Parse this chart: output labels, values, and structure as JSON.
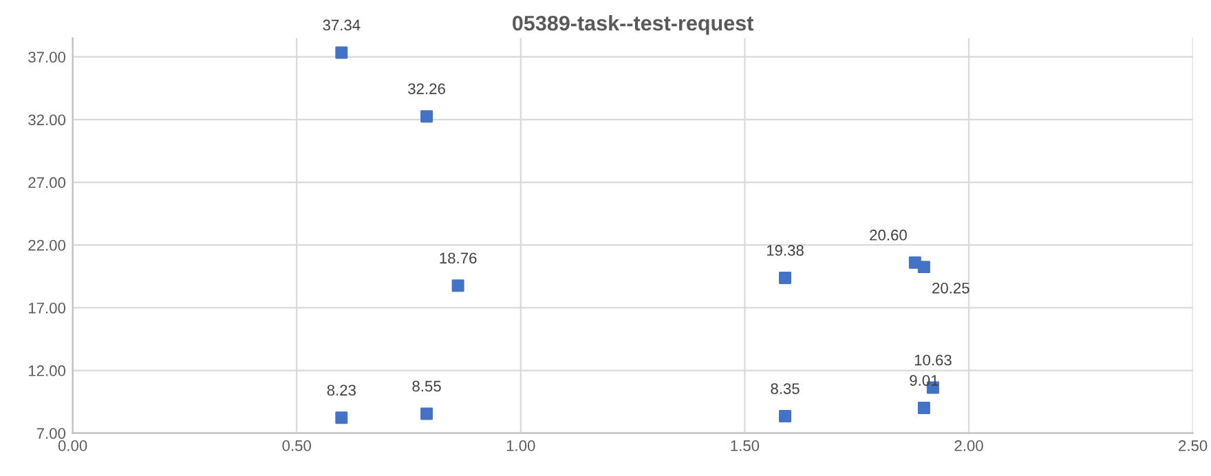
{
  "chart_data": {
    "type": "scatter",
    "title": "05389-task--test-request",
    "x": [
      0.6,
      0.79,
      0.86,
      1.59,
      1.88,
      1.9,
      0.6,
      0.79,
      1.59,
      1.9,
      1.92
    ],
    "values": [
      37.34,
      32.26,
      18.76,
      19.38,
      20.6,
      20.25,
      8.23,
      8.55,
      8.35,
      9.01,
      10.63
    ],
    "value_labels": [
      "37.34",
      "32.26",
      "18.76",
      "19.38",
      "20.60",
      "20.25",
      "8.23",
      "8.55",
      "8.35",
      "9.01",
      "10.63"
    ],
    "color": "#4472c4",
    "marker": "square",
    "grid": true,
    "legend": false,
    "xlim": [
      0,
      2.5
    ],
    "xticks": [
      {
        "value": 0,
        "label": "0.00"
      },
      {
        "value": 0.5,
        "label": "0.50"
      },
      {
        "value": 1,
        "label": "1.00"
      },
      {
        "value": 1.5,
        "label": "1.50"
      },
      {
        "value": 2,
        "label": "2.00"
      },
      {
        "value": 2.5,
        "label": "2.50"
      }
    ],
    "ylim": [
      7,
      38.5
    ],
    "yticks": [
      {
        "value": 7,
        "label": "7.00"
      },
      {
        "value": 12,
        "label": "12.00"
      },
      {
        "value": 17,
        "label": "17.00"
      },
      {
        "value": 22,
        "label": "22.00"
      },
      {
        "value": 27,
        "label": "27.00"
      },
      {
        "value": 32,
        "label": "32.00"
      },
      {
        "value": 37,
        "label": "37.00"
      }
    ]
  }
}
